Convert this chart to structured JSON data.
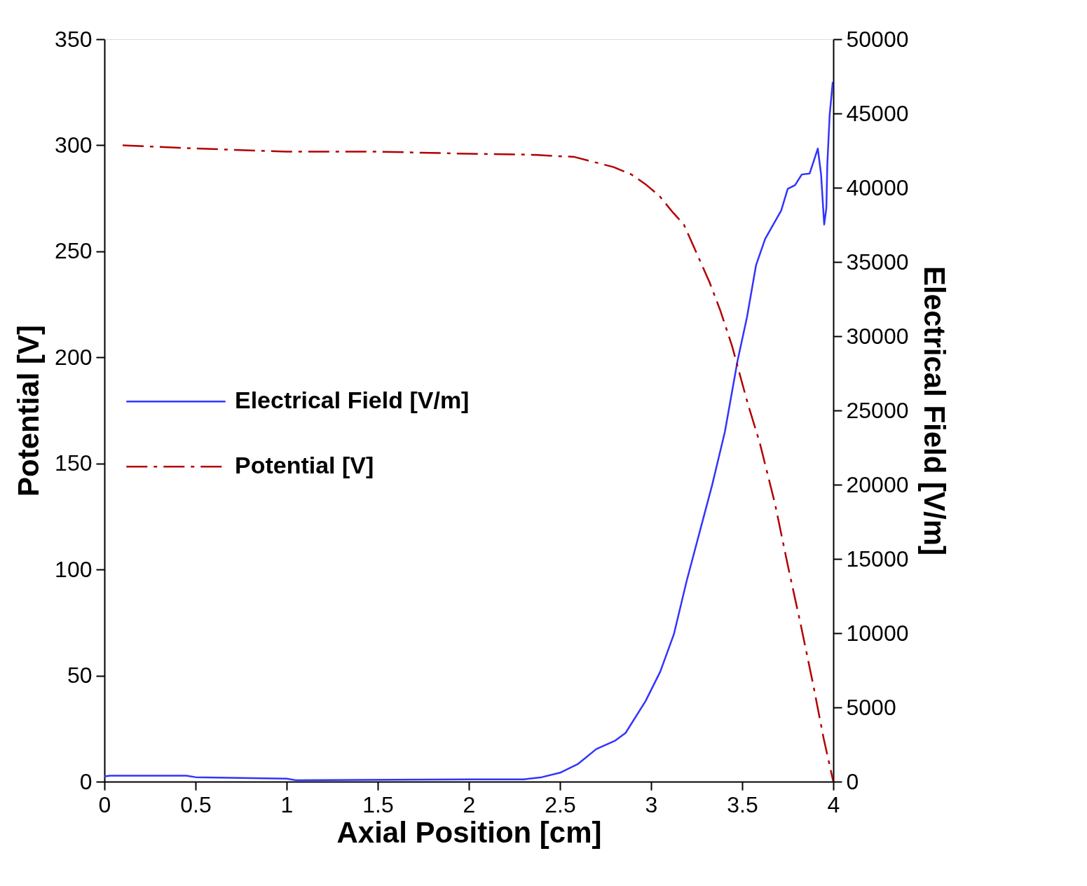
{
  "chart_data": {
    "type": "line",
    "xlabel": "Axial Position [cm]",
    "ylabel": "Potential [V]",
    "y2label": "Electrical Field [V/m]",
    "xlim": [
      0,
      4
    ],
    "xticks": [
      0,
      0.5,
      1,
      1.5,
      2,
      2.5,
      3,
      3.5,
      4
    ],
    "ylim": [
      0,
      350
    ],
    "yticks": [
      0,
      50,
      100,
      150,
      200,
      250,
      300,
      350
    ],
    "y2lim": [
      0,
      50000
    ],
    "y2ticks": [
      0,
      5000,
      10000,
      15000,
      20000,
      25000,
      30000,
      35000,
      40000,
      45000,
      50000
    ],
    "grid": false,
    "legend": "left",
    "marker": "none",
    "series": [
      {
        "name": "Electrical Field [V/m]",
        "color": "#3333ff",
        "axis": "y2",
        "line_style": "solid",
        "x": [
          0,
          0.03,
          0.45,
          0.5,
          1.0,
          1.05,
          2.0,
          2.3,
          2.4,
          2.5,
          2.6,
          2.7,
          2.8,
          2.86,
          2.97,
          3.05,
          3.125,
          3.195,
          3.265,
          3.335,
          3.405,
          3.475,
          3.526,
          3.576,
          3.626,
          3.714,
          3.75,
          3.79,
          3.827,
          3.87,
          3.915,
          3.933,
          3.95,
          3.962,
          3.967,
          3.98,
          3.997
        ],
        "values": [
          350,
          400,
          400,
          300,
          200,
          100,
          150,
          150,
          300,
          600,
          1200,
          2200,
          2740,
          3280,
          5430,
          7400,
          9920,
          13500,
          16740,
          19970,
          23560,
          28370,
          31260,
          34780,
          36550,
          38460,
          39920,
          40170,
          40890,
          40950,
          42640,
          40890,
          37520,
          38640,
          41520,
          44880,
          47130
        ]
      },
      {
        "name": "Potential [V]",
        "color": "#b30000",
        "axis": "y",
        "line_style": "dashdot",
        "x": [
          0.1,
          0.5,
          1.0,
          1.5,
          2.0,
          2.33,
          2.58,
          2.655,
          2.795,
          2.893,
          2.97,
          3.045,
          3.12,
          3.18,
          3.256,
          3.32,
          3.38,
          3.444,
          3.53,
          3.596,
          3.68,
          3.75,
          3.82,
          3.89,
          3.947,
          4.0
        ],
        "values": [
          300,
          298.5,
          297,
          297,
          296,
          295.6,
          294.5,
          292.8,
          289.7,
          286.2,
          281.6,
          276.2,
          268.3,
          262.6,
          248,
          235.6,
          222.1,
          205.5,
          178.4,
          159.9,
          131,
          102.1,
          74.5,
          45.6,
          20.4,
          0
        ]
      }
    ]
  }
}
